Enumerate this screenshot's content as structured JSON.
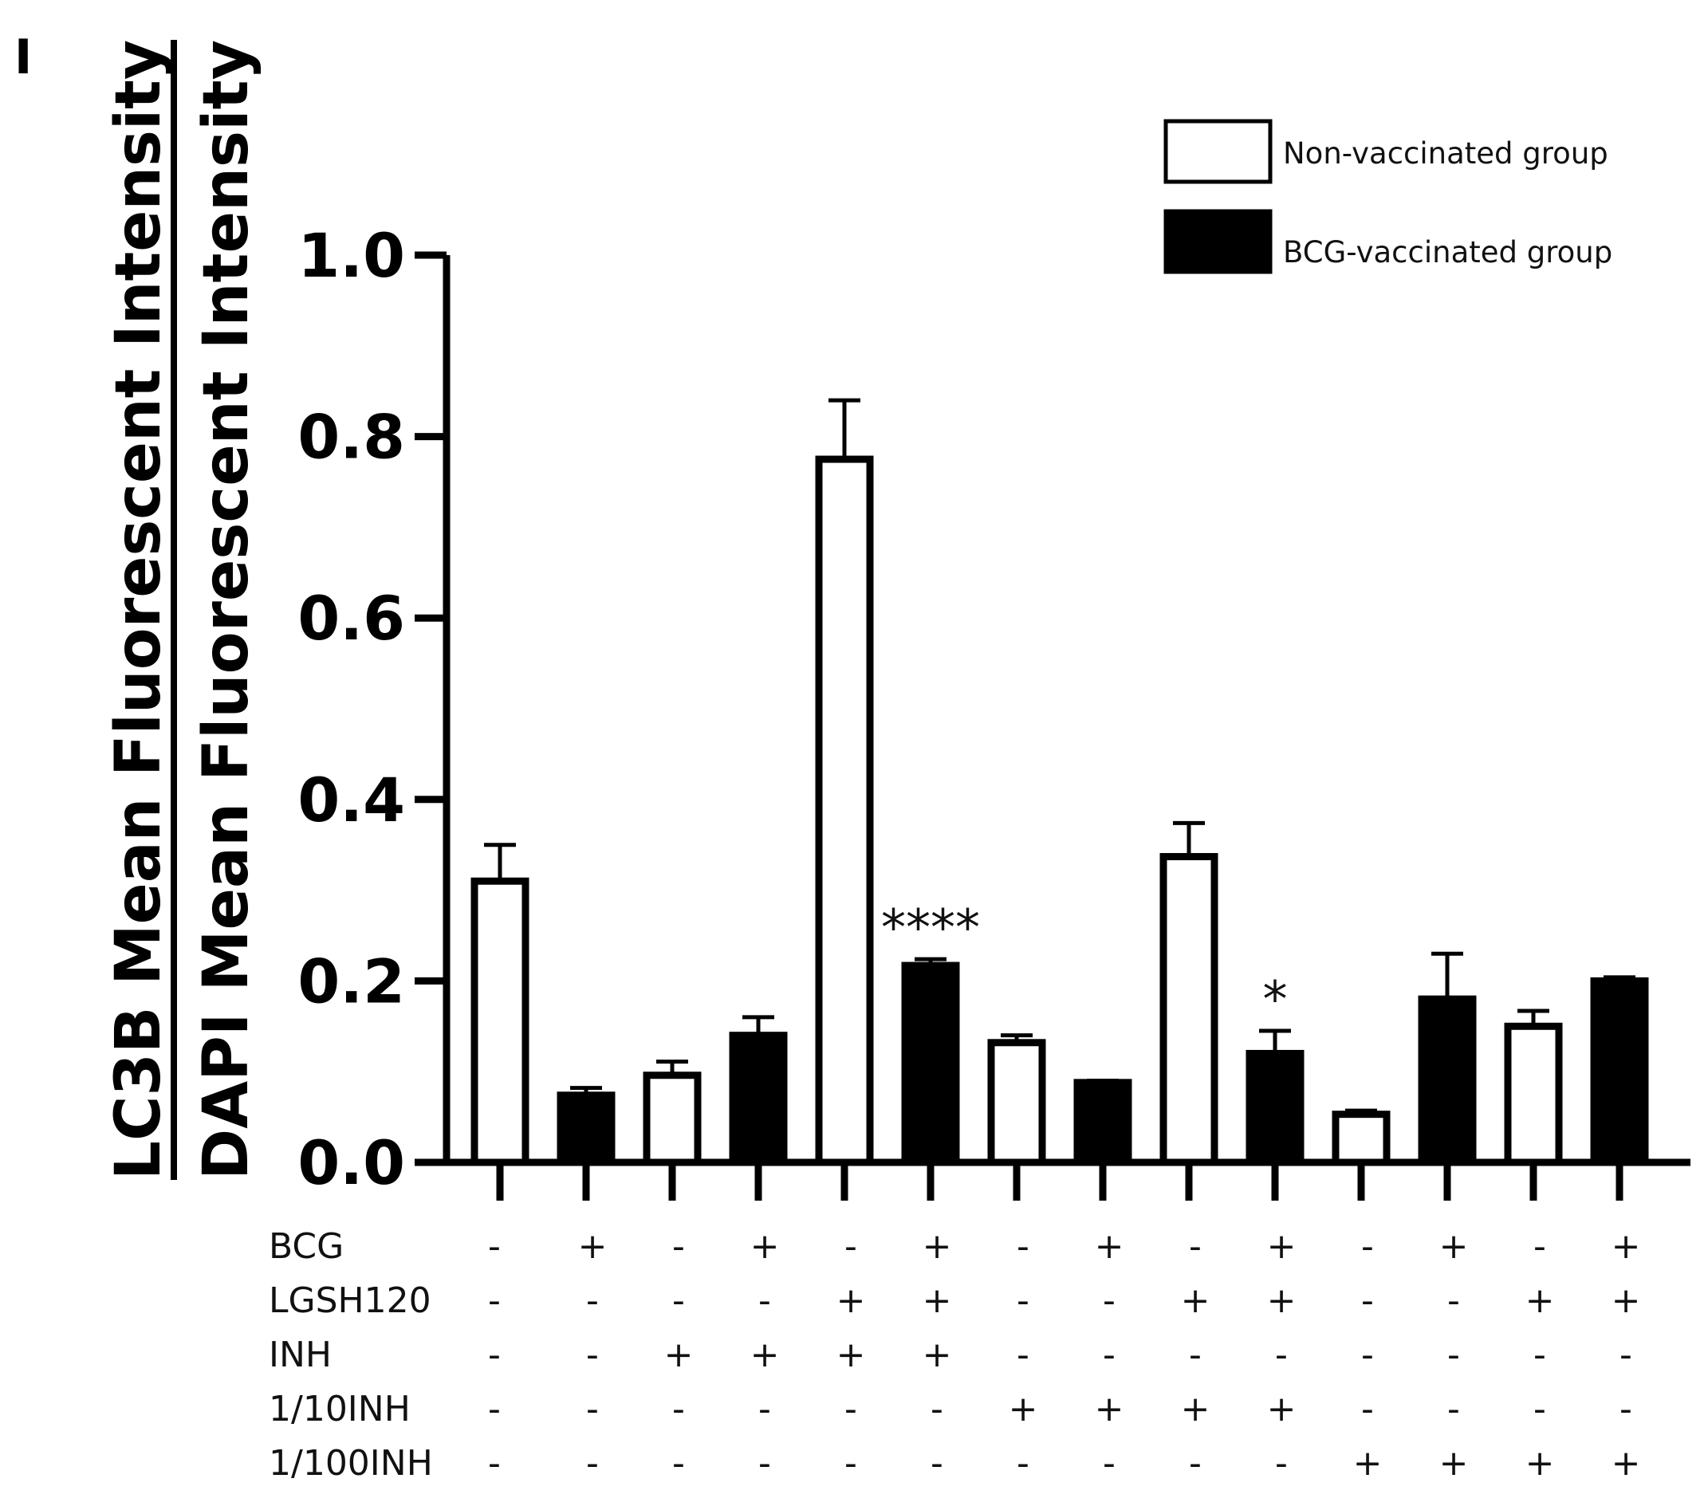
{
  "panel_label": "I",
  "chart_data": {
    "type": "bar",
    "ylabel_top": "LC3B Mean Fluorescent Intensity",
    "ylabel_bottom": "DAPI Mean Fluorescent Intensity",
    "ylim": [
      0,
      1.0
    ],
    "yticks": [
      "0.0",
      "0.2",
      "0.4",
      "0.6",
      "0.8",
      "1.0"
    ],
    "ytick_values": [
      0,
      0.2,
      0.4,
      0.6,
      0.8,
      1.0
    ],
    "legend": [
      {
        "label": "Non-vaccinated group",
        "fill": "#ffffff"
      },
      {
        "label": "BCG-vaccinated group",
        "fill": "#000000"
      }
    ],
    "bars": [
      {
        "value": 0.31,
        "error": 0.04,
        "group": 0
      },
      {
        "value": 0.074,
        "error": 0.008,
        "group": 1
      },
      {
        "value": 0.096,
        "error": 0.015,
        "group": 0
      },
      {
        "value": 0.14,
        "error": 0.02,
        "group": 1
      },
      {
        "value": 0.775,
        "error": 0.065,
        "group": 0
      },
      {
        "value": 0.217,
        "error": 0.007,
        "group": 1,
        "sig": "****"
      },
      {
        "value": 0.132,
        "error": 0.008,
        "group": 0
      },
      {
        "value": 0.088,
        "error": 0.002,
        "group": 1
      },
      {
        "value": 0.337,
        "error": 0.037,
        "group": 0
      },
      {
        "value": 0.12,
        "error": 0.025,
        "group": 1,
        "sig": "*"
      },
      {
        "value": 0.053,
        "error": 0.004,
        "group": 0
      },
      {
        "value": 0.18,
        "error": 0.05,
        "group": 1
      },
      {
        "value": 0.15,
        "error": 0.017,
        "group": 0
      },
      {
        "value": 0.2,
        "error": 0.004,
        "group": 1
      }
    ],
    "conditions": [
      {
        "label": "BCG",
        "marks": [
          "-",
          "+",
          "-",
          "+",
          "-",
          "+",
          "-",
          "+",
          "-",
          "+",
          "-",
          "+",
          "-",
          "+"
        ]
      },
      {
        "label": "LGSH120",
        "marks": [
          "-",
          "-",
          "-",
          "-",
          "+",
          "+",
          "-",
          "-",
          "+",
          "+",
          "-",
          "-",
          "+",
          "+"
        ]
      },
      {
        "label": "INH",
        "marks": [
          "-",
          "-",
          "+",
          "+",
          "+",
          "+",
          "-",
          "-",
          "-",
          "-",
          "-",
          "-",
          "-",
          "-"
        ]
      },
      {
        "label": "1/10INH",
        "marks": [
          "-",
          "-",
          "-",
          "-",
          "-",
          "-",
          "+",
          "+",
          "+",
          "+",
          "-",
          "-",
          "-",
          "-"
        ]
      },
      {
        "label": "1/100INH",
        "marks": [
          "-",
          "-",
          "-",
          "-",
          "-",
          "-",
          "-",
          "-",
          "-",
          "-",
          "+",
          "+",
          "+",
          "+"
        ]
      }
    ]
  }
}
